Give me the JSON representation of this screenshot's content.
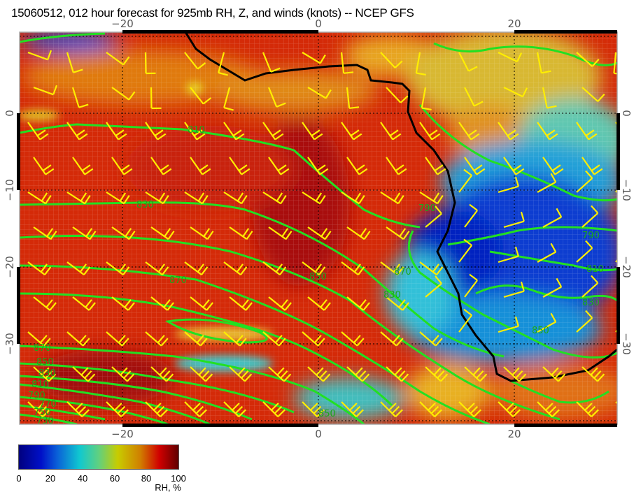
{
  "title": "15060512, 012 hour forecast for 925mb RH, Z, and winds (knots) -- NCEP GFS",
  "axes": {
    "x_ticks": [
      "−20",
      "0",
      "20"
    ],
    "y_ticks": [
      "0",
      "−10",
      "−20",
      "−30"
    ]
  },
  "colorbar": {
    "labels": [
      "0",
      "20",
      "40",
      "60",
      "80",
      "100"
    ],
    "title": "RH, %",
    "colors": [
      "#00007f",
      "#0010c8",
      "#10c8d0",
      "#c8cc00",
      "#d00000",
      "#600000"
    ]
  },
  "contour_labels": [
    "810",
    "830",
    "870",
    "850",
    "830",
    "790",
    "870",
    "790",
    "810",
    "830",
    "850",
    "870",
    "850",
    "830",
    "810",
    "790",
    "770",
    "750",
    "730",
    "850"
  ],
  "colors": {
    "contour": "#22e022",
    "barb": "#ffee00",
    "coast": "#000000"
  }
}
